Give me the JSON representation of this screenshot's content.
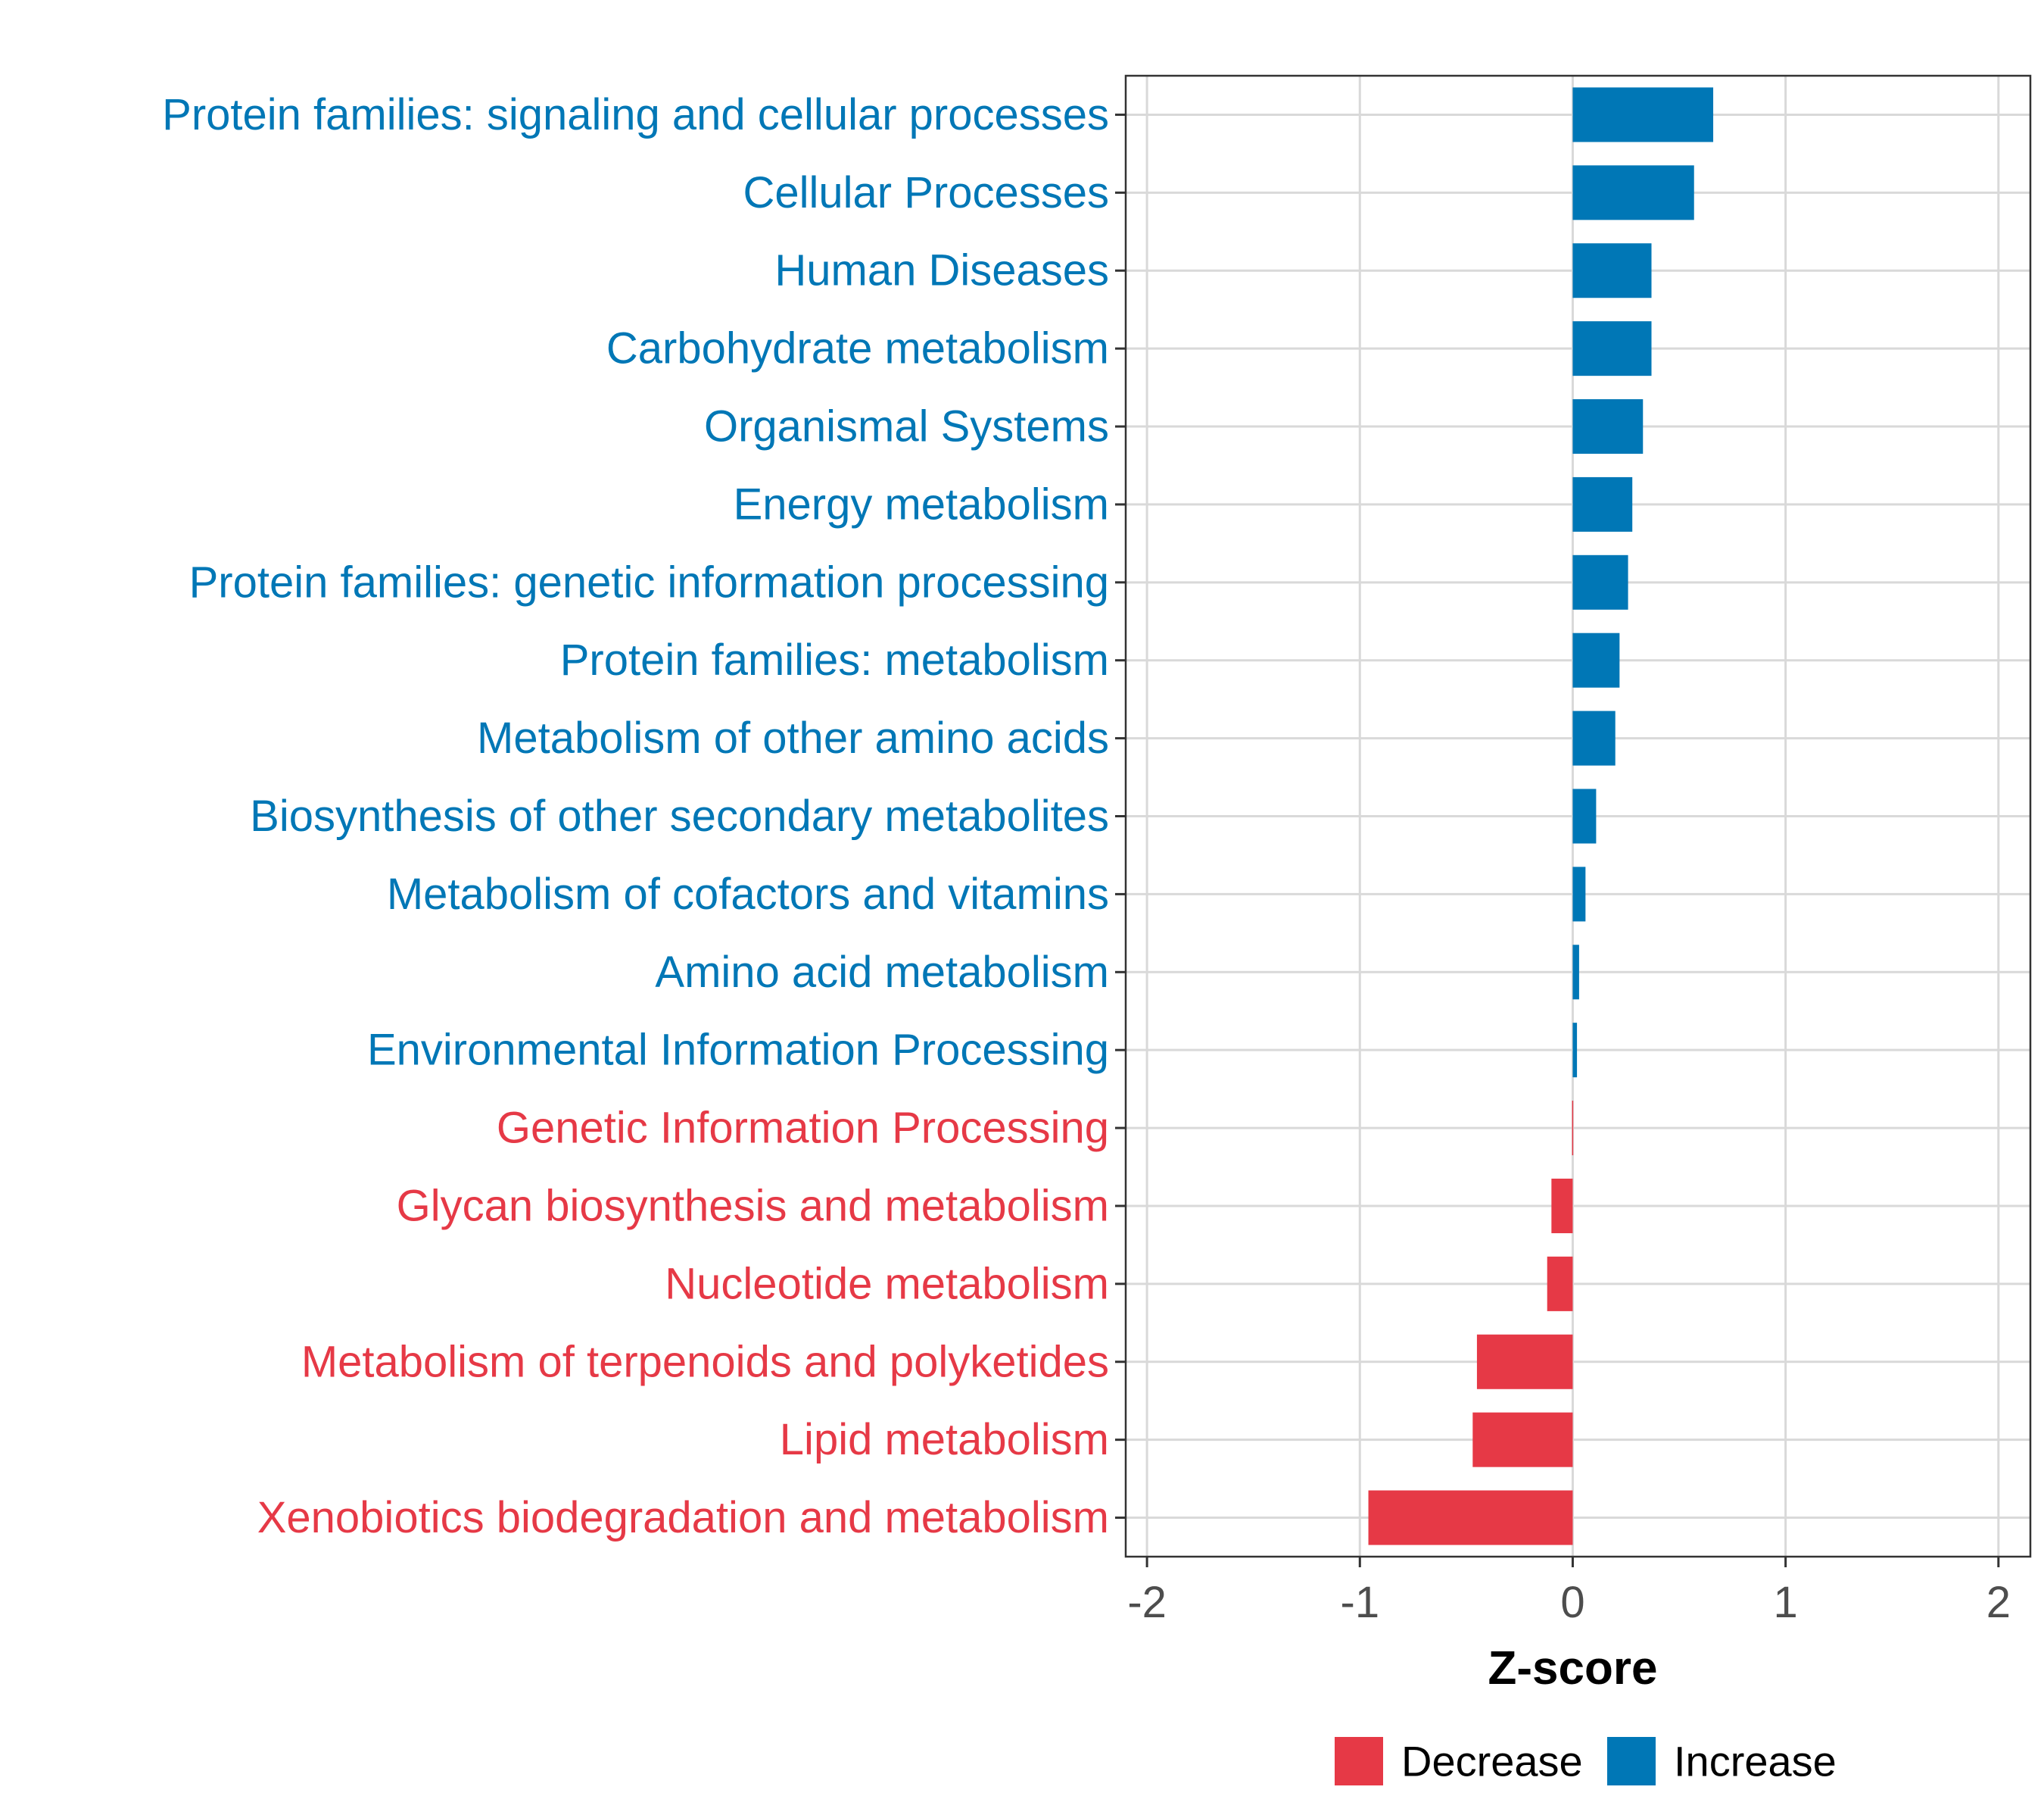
{
  "chart_data": {
    "type": "bar",
    "orientation": "horizontal",
    "title": "",
    "xlabel": "Z-score",
    "ylabel": "",
    "xlim": [
      -2.1,
      2.15
    ],
    "xticks": [
      -2,
      -1,
      0,
      1,
      2
    ],
    "xtick_labels": [
      "-2",
      "-1",
      "0",
      "1",
      "2"
    ],
    "grid": true,
    "legend_position": "bottom",
    "legend": [
      {
        "label": "Decrease",
        "color": "#E63946"
      },
      {
        "label": "Increase",
        "color": "#0077B6"
      }
    ],
    "colors": {
      "Decrease": "#E63946",
      "Increase": "#0077B6"
    },
    "categories": [
      "Protein families: signaling and cellular processes",
      "Cellular Processes",
      "Human Diseases",
      "Carbohydrate metabolism",
      "Organismal Systems",
      "Energy metabolism",
      "Protein families: genetic information processing",
      "Protein families: metabolism",
      "Metabolism of other amino acids",
      "Biosynthesis of other secondary metabolites",
      "Metabolism of cofactors and vitamins",
      "Amino acid metabolism",
      "Environmental Information Processing",
      "Genetic Information Processing",
      "Glycan biosynthesis and metabolism",
      "Nucleotide metabolism",
      "Metabolism of terpenoids and polyketides",
      "Lipid metabolism",
      "Xenobiotics biodegradation and metabolism"
    ],
    "values": [
      0.66,
      0.57,
      0.37,
      0.37,
      0.33,
      0.28,
      0.26,
      0.22,
      0.2,
      0.11,
      0.06,
      0.03,
      0.02,
      -0.003,
      -0.1,
      -0.12,
      -0.45,
      -0.47,
      -0.96
    ],
    "groups": [
      "Increase",
      "Increase",
      "Increase",
      "Increase",
      "Increase",
      "Increase",
      "Increase",
      "Increase",
      "Increase",
      "Increase",
      "Increase",
      "Increase",
      "Increase",
      "Decrease",
      "Decrease",
      "Decrease",
      "Decrease",
      "Decrease",
      "Decrease"
    ]
  }
}
